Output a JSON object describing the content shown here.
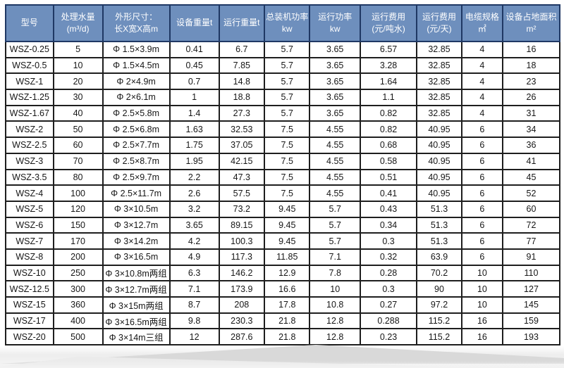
{
  "colors": {
    "header_bg": "#6e8fbd",
    "header_border": "#1f3864",
    "header_text": "#ffffff",
    "body_border": "#1e1e1e",
    "body_text": "#161616"
  },
  "table": {
    "columns": [
      {
        "id": "model",
        "lines": [
          "型号"
        ]
      },
      {
        "id": "capacity",
        "lines": [
          "处理水量",
          "(m³/d)"
        ]
      },
      {
        "id": "dimensions",
        "lines": [
          "外形尺寸：",
          "长X宽X高m"
        ]
      },
      {
        "id": "equipment-weight",
        "lines": [
          "设备重量t"
        ]
      },
      {
        "id": "operating-weight",
        "lines": [
          "运行重量t"
        ]
      },
      {
        "id": "installed-power",
        "lines": [
          "总装机功率",
          "kw"
        ]
      },
      {
        "id": "operating-power",
        "lines": [
          "运行功率",
          "kw"
        ]
      },
      {
        "id": "cost-per-ton",
        "lines": [
          "运行费用",
          "(元/吨水)"
        ]
      },
      {
        "id": "cost-per-day",
        "lines": [
          "运行费用",
          "(元/天)"
        ]
      },
      {
        "id": "cable-spec",
        "lines": [
          "电缆规格",
          "㎡"
        ]
      },
      {
        "id": "footprint",
        "lines": [
          "设备占地面积",
          "m²"
        ]
      }
    ],
    "rows": [
      [
        "WSZ-0.25",
        "5",
        "Φ 1.5×3.9m",
        "0.41",
        "6.7",
        "5.7",
        "3.65",
        "6.57",
        "32.85",
        "4",
        "16"
      ],
      [
        "WSZ-0.5",
        "10",
        "Φ 1.5×4.5m",
        "0.45",
        "7.85",
        "5.7",
        "3.65",
        "3.28",
        "32.85",
        "4",
        "18"
      ],
      [
        "WSZ-1",
        "20",
        "Φ 2×4.9m",
        "0.7",
        "14.8",
        "5.7",
        "3.65",
        "1.64",
        "32.85",
        "4",
        "23"
      ],
      [
        "WSZ-1.25",
        "30",
        "Φ 2×6.1m",
        "1",
        "18.8",
        "5.7",
        "3.65",
        "1.1",
        "32.85",
        "4",
        "26"
      ],
      [
        "WSZ-1.67",
        "40",
        "Φ 2.5×5.8m",
        "1.4",
        "27.3",
        "5.7",
        "3.65",
        "0.82",
        "32.85",
        "4",
        "31"
      ],
      [
        "WSZ-2",
        "50",
        "Φ 2.5×6.8m",
        "1.63",
        "32.53",
        "7.5",
        "4.55",
        "0.82",
        "40.95",
        "6",
        "34"
      ],
      [
        "WSZ-2.5",
        "60",
        "Φ 2.5×7.7m",
        "1.75",
        "37.05",
        "7.5",
        "4.55",
        "0.68",
        "40.95",
        "6",
        "36"
      ],
      [
        "WSZ-3",
        "70",
        "Φ 2.5×8.7m",
        "1.95",
        "42.15",
        "7.5",
        "4.55",
        "0.58",
        "40.95",
        "6",
        "41"
      ],
      [
        "WSZ-3.5",
        "80",
        "Φ 2.5×9.7m",
        "2.2",
        "47.3",
        "7.5",
        "4.55",
        "0.51",
        "40.95",
        "6",
        "45"
      ],
      [
        "WSZ-4",
        "100",
        "Φ 2.5×11.7m",
        "2.6",
        "57.5",
        "7.5",
        "4.55",
        "0.41",
        "40.95",
        "6",
        "52"
      ],
      [
        "WSZ-5",
        "120",
        "Φ 3×10.5m",
        "3.2",
        "73.2",
        "9.45",
        "5.7",
        "0.43",
        "51.3",
        "6",
        "60"
      ],
      [
        "WSZ-6",
        "150",
        "Φ 3×12.7m",
        "3.65",
        "89.15",
        "9.45",
        "5.7",
        "0.34",
        "51.3",
        "6",
        "72"
      ],
      [
        "WSZ-7",
        "170",
        "Φ 3×14.2m",
        "4.2",
        "100.3",
        "9.45",
        "5.7",
        "0.3",
        "51.3",
        "6",
        "77"
      ],
      [
        "WSZ-8",
        "200",
        "Φ 3×16.5m",
        "4.9",
        "117.3",
        "11.85",
        "7.1",
        "0.32",
        "63.9",
        "6",
        "91"
      ],
      [
        "WSZ-10",
        "250",
        "Φ 3×10.8m两组",
        "6.3",
        "146.2",
        "12.9",
        "7.8",
        "0.28",
        "70.2",
        "10",
        "110"
      ],
      [
        "WSZ-12.5",
        "300",
        "Φ 3×12.7m两组",
        "7.1",
        "173.9",
        "16.6",
        "10",
        "0.3",
        "90",
        "10",
        "127"
      ],
      [
        "WSZ-15",
        "360",
        "Φ 3×15m两组",
        "8.7",
        "208",
        "17.8",
        "10.8",
        "0.27",
        "97.2",
        "10",
        "145"
      ],
      [
        "WSZ-17",
        "400",
        "Φ 3×16.5m两组",
        "9.8",
        "230.3",
        "21.8",
        "12.8",
        "0.288",
        "115.2",
        "16",
        "159"
      ],
      [
        "WSZ-20",
        "500",
        "Φ 3×14m三组",
        "12",
        "287.6",
        "21.8",
        "12.8",
        "0.23",
        "115.2",
        "16",
        "193"
      ]
    ]
  }
}
